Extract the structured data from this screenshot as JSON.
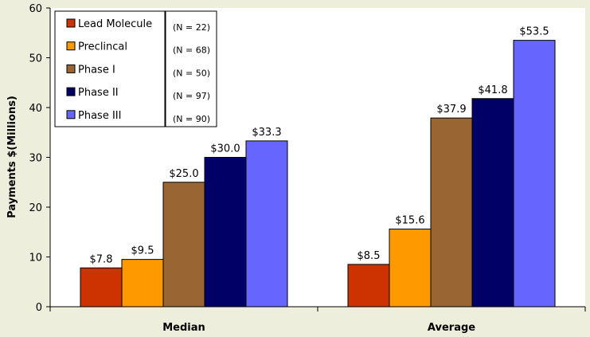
{
  "chart_data": {
    "type": "bar",
    "categories": [
      "Median",
      "Average"
    ],
    "ylabel": "Payments $(Millions)",
    "xlabel": "",
    "ylim": [
      0,
      60
    ],
    "yticks": [
      0,
      10,
      20,
      30,
      40,
      50,
      60
    ],
    "grid": false,
    "legend_position": "top-left",
    "series": [
      {
        "name": "Lead Molecule",
        "n_label": "(N = 22)",
        "color": "#cc3300",
        "values": [
          7.8,
          8.5
        ],
        "labels": [
          "$7.8",
          "$8.5"
        ]
      },
      {
        "name": "Preclincal",
        "n_label": "(N = 68)",
        "color": "#ff9900",
        "values": [
          9.5,
          15.6
        ],
        "labels": [
          "$9.5",
          "$15.6"
        ]
      },
      {
        "name": "Phase I",
        "n_label": "(N = 50)",
        "color": "#996633",
        "values": [
          25.0,
          37.9
        ],
        "labels": [
          "$25.0",
          "$37.9"
        ]
      },
      {
        "name": "Phase II",
        "n_label": "(N = 97)",
        "color": "#000066",
        "values": [
          30.0,
          41.8
        ],
        "labels": [
          "$30.0",
          "$41.8"
        ]
      },
      {
        "name": "Phase III",
        "n_label": "(N = 90)",
        "color": "#6666ff",
        "values": [
          33.3,
          53.5
        ],
        "labels": [
          "$33.3",
          "$53.5"
        ]
      }
    ]
  }
}
